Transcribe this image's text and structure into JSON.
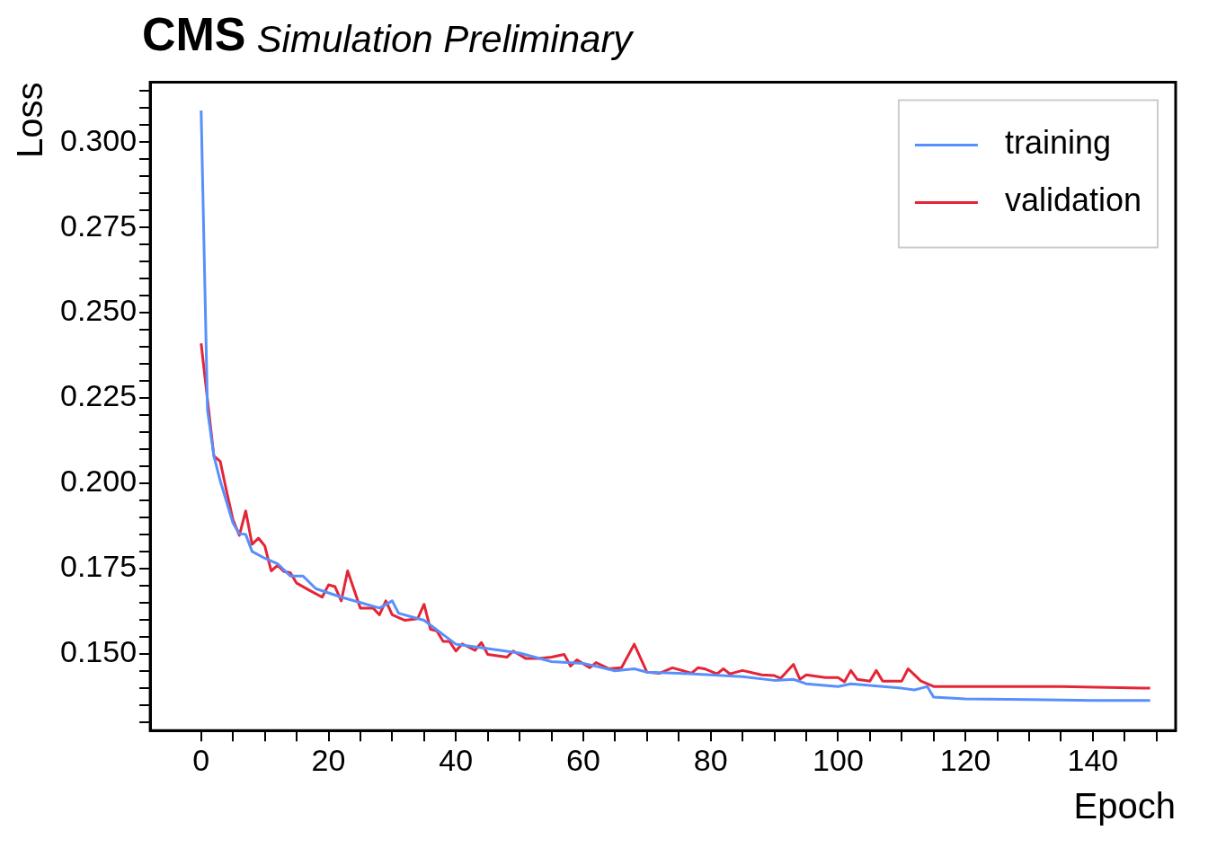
{
  "chart_data": {
    "type": "line",
    "title": "CMS",
    "subtitle": "Simulation Preliminary",
    "xlabel": "Epoch",
    "ylabel": "Loss",
    "xlim": [
      -8,
      153
    ],
    "ylim": [
      0.1275,
      0.3176
    ],
    "xticks": [
      0,
      {
        "value": 5,
        "label": null
      },
      {
        "value": 10,
        "label": null
      },
      {
        "value": 15,
        "label": null
      },
      20,
      {
        "value": 25,
        "label": null
      },
      {
        "value": 30,
        "label": null
      },
      {
        "value": 35,
        "label": null
      },
      40,
      {
        "value": 45,
        "label": null
      },
      {
        "value": 50,
        "label": null
      },
      {
        "value": 55,
        "label": null
      },
      60,
      {
        "value": 65,
        "label": null
      },
      {
        "value": 70,
        "label": null
      },
      {
        "value": 75,
        "label": null
      },
      80,
      {
        "value": 85,
        "label": null
      },
      {
        "value": 90,
        "label": null
      },
      {
        "value": 95,
        "label": null
      },
      100,
      {
        "value": 105,
        "label": null
      },
      {
        "value": 110,
        "label": null
      },
      {
        "value": 115,
        "label": null
      },
      120,
      {
        "value": 125,
        "label": null
      },
      {
        "value": 130,
        "label": null
      },
      {
        "value": 135,
        "label": null
      },
      140,
      {
        "value": 145,
        "label": null
      },
      {
        "value": 150,
        "label": null
      }
    ],
    "yticks": [
      {
        "value": 0.13,
        "label": null
      },
      {
        "value": 0.135,
        "label": null
      },
      {
        "value": 0.14,
        "label": null
      },
      {
        "value": 0.145,
        "label": null
      },
      {
        "value": 0.15,
        "label": "0.150"
      },
      {
        "value": 0.155,
        "label": null
      },
      {
        "value": 0.16,
        "label": null
      },
      {
        "value": 0.165,
        "label": null
      },
      {
        "value": 0.17,
        "label": null
      },
      {
        "value": 0.175,
        "label": "0.175"
      },
      {
        "value": 0.18,
        "label": null
      },
      {
        "value": 0.185,
        "label": null
      },
      {
        "value": 0.19,
        "label": null
      },
      {
        "value": 0.195,
        "label": null
      },
      {
        "value": 0.2,
        "label": "0.200"
      },
      {
        "value": 0.205,
        "label": null
      },
      {
        "value": 0.21,
        "label": null
      },
      {
        "value": 0.215,
        "label": null
      },
      {
        "value": 0.22,
        "label": null
      },
      {
        "value": 0.225,
        "label": "0.225"
      },
      {
        "value": 0.23,
        "label": null
      },
      {
        "value": 0.235,
        "label": null
      },
      {
        "value": 0.24,
        "label": null
      },
      {
        "value": 0.245,
        "label": null
      },
      {
        "value": 0.25,
        "label": "0.250"
      },
      {
        "value": 0.255,
        "label": null
      },
      {
        "value": 0.26,
        "label": null
      },
      {
        "value": 0.265,
        "label": null
      },
      {
        "value": 0.27,
        "label": null
      },
      {
        "value": 0.275,
        "label": "0.275"
      },
      {
        "value": 0.28,
        "label": null
      },
      {
        "value": 0.285,
        "label": null
      },
      {
        "value": 0.29,
        "label": null
      },
      {
        "value": 0.295,
        "label": null
      },
      {
        "value": 0.3,
        "label": "0.300"
      },
      {
        "value": 0.305,
        "label": null
      },
      {
        "value": 0.31,
        "label": null
      },
      {
        "value": 0.315,
        "label": null
      }
    ],
    "grid": false,
    "legend": "top right",
    "line_style": "solid",
    "marker": "none",
    "series": [
      {
        "name": "training",
        "color": "#5790fc",
        "x": [
          0,
          1,
          2,
          3,
          4,
          5,
          6,
          7,
          8,
          10,
          12,
          14,
          16,
          18,
          22,
          25,
          28,
          30,
          31,
          35,
          40,
          45,
          50,
          55,
          60,
          65,
          68,
          70,
          75,
          80,
          85,
          90,
          93,
          95,
          100,
          102,
          105,
          110,
          112,
          113,
          114,
          115,
          120,
          130,
          140,
          149
        ],
        "values": [
          0.3093,
          0.2214,
          0.208,
          0.2007,
          0.1945,
          0.1883,
          0.1852,
          0.185,
          0.18,
          0.178,
          0.1764,
          0.1728,
          0.1728,
          0.1691,
          0.1666,
          0.165,
          0.1634,
          0.1655,
          0.1619,
          0.1598,
          0.1528,
          0.1515,
          0.1502,
          0.1477,
          0.1472,
          0.145,
          0.1456,
          0.1446,
          0.1443,
          0.1438,
          0.1433,
          0.1422,
          0.1425,
          0.1412,
          0.1404,
          0.1412,
          0.1407,
          0.1399,
          0.1394,
          0.1399,
          0.1404,
          0.1373,
          0.1368,
          0.1366,
          0.1363,
          0.1363
        ]
      },
      {
        "name": "validation",
        "color": "#e42536",
        "x": [
          0,
          1,
          2,
          3,
          4,
          5,
          6,
          7,
          8,
          9,
          10,
          11,
          12,
          13,
          14,
          15,
          17,
          19,
          20,
          21,
          22,
          23,
          25,
          27,
          28,
          29,
          30,
          32,
          34,
          35,
          36,
          37,
          38,
          39,
          40,
          41,
          43,
          44,
          45,
          48,
          49,
          51,
          53,
          55,
          57,
          58,
          59,
          61,
          62,
          64,
          66,
          68,
          70,
          72,
          74,
          77,
          78,
          79,
          81,
          82,
          83,
          85,
          88,
          90,
          91,
          93,
          94,
          95,
          98,
          100,
          101,
          102,
          103,
          105,
          106,
          107,
          110,
          111,
          113,
          115,
          125,
          130,
          135,
          149
        ],
        "values": [
          0.241,
          0.2245,
          0.208,
          0.2064,
          0.1976,
          0.1893,
          0.1847,
          0.1919,
          0.1821,
          0.1839,
          0.1816,
          0.1743,
          0.1759,
          0.1741,
          0.1738,
          0.1707,
          0.1686,
          0.1666,
          0.1702,
          0.1697,
          0.1655,
          0.1743,
          0.1634,
          0.1634,
          0.1614,
          0.1655,
          0.1614,
          0.1598,
          0.1603,
          0.1645,
          0.1572,
          0.1567,
          0.1536,
          0.1536,
          0.1508,
          0.1529,
          0.151,
          0.1533,
          0.1498,
          0.149,
          0.1508,
          0.1486,
          0.1486,
          0.149,
          0.1498,
          0.1464,
          0.1482,
          0.1459,
          0.1474,
          0.1456,
          0.1459,
          0.1528,
          0.1446,
          0.1443,
          0.1459,
          0.1443,
          0.1459,
          0.1456,
          0.1441,
          0.1456,
          0.1441,
          0.1451,
          0.1438,
          0.1436,
          0.1428,
          0.1469,
          0.1425,
          0.1438,
          0.143,
          0.143,
          0.1418,
          0.1451,
          0.1425,
          0.142,
          0.1451,
          0.142,
          0.142,
          0.1456,
          0.142,
          0.1404,
          0.1404,
          0.1404,
          0.1404,
          0.1399
        ]
      }
    ]
  }
}
